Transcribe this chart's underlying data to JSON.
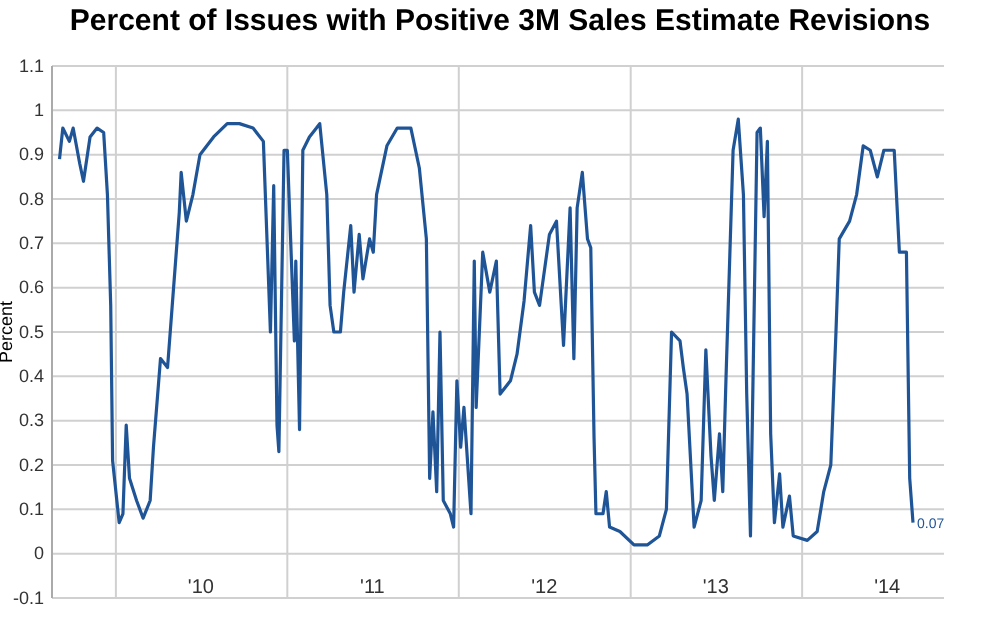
{
  "chart_data": {
    "type": "line",
    "title": "Percent of Issues with Positive 3M Sales Estimate Revisions",
    "ylabel": "Percent",
    "x": [
      "2009-09-03",
      "2009-09-10",
      "2009-09-24",
      "2009-10-02",
      "2009-10-16",
      "2009-10-24",
      "2009-11-07",
      "2009-11-22",
      "2009-12-06",
      "2009-12-14",
      "2009-12-21",
      "2009-12-25",
      "2010-01-08",
      "2010-01-16",
      "2010-01-23",
      "2010-01-30",
      "2010-02-14",
      "2010-02-28",
      "2010-03-15",
      "2010-03-22",
      "2010-04-06",
      "2010-04-21",
      "2010-05-01",
      "2010-05-16",
      "2010-05-20",
      "2010-05-31",
      "2010-06-14",
      "2010-06-29",
      "2010-07-28",
      "2010-08-26",
      "2010-09-21",
      "2010-10-20",
      "2010-11-11",
      "2010-11-26",
      "2010-12-03",
      "2010-12-10",
      "2010-12-14",
      "2010-12-25",
      "2011-01-01",
      "2011-01-08",
      "2011-01-16",
      "2011-01-19",
      "2011-01-27",
      "2011-02-03",
      "2011-02-17",
      "2011-03-04",
      "2011-03-11",
      "2011-03-26",
      "2011-04-02",
      "2011-04-10",
      "2011-04-24",
      "2011-05-01",
      "2011-05-16",
      "2011-05-23",
      "2011-06-03",
      "2011-06-11",
      "2011-06-25",
      "2011-07-03",
      "2011-07-10",
      "2011-08-01",
      "2011-08-23",
      "2011-09-21",
      "2011-10-09",
      "2011-10-24",
      "2011-10-31",
      "2011-11-07",
      "2011-11-15",
      "2011-11-22",
      "2011-11-29",
      "2011-12-14",
      "2011-12-21",
      "2011-12-28",
      "2012-01-05",
      "2012-01-12",
      "2012-01-27",
      "2012-02-03",
      "2012-02-07",
      "2012-02-21",
      "2012-03-07",
      "2012-03-21",
      "2012-03-29",
      "2012-04-20",
      "2012-05-04",
      "2012-05-19",
      "2012-06-02",
      "2012-06-10",
      "2012-06-21",
      "2012-07-12",
      "2012-07-27",
      "2012-08-11",
      "2012-08-25",
      "2012-09-02",
      "2012-09-09",
      "2012-09-20",
      "2012-10-01",
      "2012-10-08",
      "2012-10-15",
      "2012-10-19",
      "2012-11-03",
      "2012-11-10",
      "2012-11-17",
      "2012-12-09",
      "2013-01-08",
      "2013-02-06",
      "2013-03-03",
      "2013-03-18",
      "2013-03-29",
      "2013-04-16",
      "2013-04-23",
      "2013-05-01",
      "2013-05-16",
      "2013-05-31",
      "2013-06-10",
      "2013-06-21",
      "2013-06-28",
      "2013-07-09",
      "2013-07-16",
      "2013-07-23",
      "2013-08-07",
      "2013-08-18",
      "2013-08-29",
      "2013-09-05",
      "2013-09-13",
      "2013-09-27",
      "2013-10-04",
      "2013-10-12",
      "2013-10-19",
      "2013-10-26",
      "2013-11-03",
      "2013-11-14",
      "2013-11-21",
      "2013-12-05",
      "2013-12-13",
      "2014-01-12",
      "2014-02-02",
      "2014-02-16",
      "2014-03-03",
      "2014-03-14",
      "2014-03-21",
      "2014-04-12",
      "2014-04-27",
      "2014-05-11",
      "2014-05-26",
      "2014-06-10",
      "2014-06-24",
      "2014-07-16",
      "2014-07-27",
      "2014-08-11",
      "2014-08-18",
      "2014-08-25"
    ],
    "series": [
      {
        "color": "#1f5597",
        "values": [
          0.89,
          0.96,
          0.93,
          0.96,
          0.88,
          0.84,
          0.94,
          0.96,
          0.95,
          0.81,
          0.56,
          0.21,
          0.07,
          0.09,
          0.29,
          0.17,
          0.12,
          0.08,
          0.12,
          0.24,
          0.44,
          0.42,
          0.56,
          0.77,
          0.86,
          0.75,
          0.81,
          0.9,
          0.94,
          0.97,
          0.97,
          0.96,
          0.93,
          0.5,
          0.83,
          0.29,
          0.23,
          0.91,
          0.91,
          0.71,
          0.48,
          0.66,
          0.28,
          0.91,
          0.94,
          0.96,
          0.97,
          0.81,
          0.56,
          0.5,
          0.5,
          0.59,
          0.74,
          0.59,
          0.72,
          0.62,
          0.71,
          0.68,
          0.81,
          0.92,
          0.96,
          0.96,
          0.87,
          0.71,
          0.17,
          0.32,
          0.14,
          0.5,
          0.12,
          0.09,
          0.06,
          0.39,
          0.24,
          0.33,
          0.09,
          0.66,
          0.33,
          0.68,
          0.59,
          0.66,
          0.36,
          0.39,
          0.45,
          0.57,
          0.74,
          0.59,
          0.56,
          0.72,
          0.75,
          0.47,
          0.78,
          0.44,
          0.78,
          0.86,
          0.71,
          0.69,
          0.26,
          0.09,
          0.09,
          0.14,
          0.06,
          0.05,
          0.02,
          0.02,
          0.04,
          0.1,
          0.5,
          0.48,
          0.42,
          0.36,
          0.06,
          0.12,
          0.46,
          0.22,
          0.12,
          0.27,
          0.14,
          0.4,
          0.91,
          0.98,
          0.81,
          0.36,
          0.04,
          0.95,
          0.96,
          0.76,
          0.93,
          0.27,
          0.07,
          0.18,
          0.06,
          0.13,
          0.04,
          0.03,
          0.05,
          0.14,
          0.2,
          0.5,
          0.71,
          0.75,
          0.81,
          0.92,
          0.91,
          0.85,
          0.91,
          0.91,
          0.68,
          0.68,
          0.17,
          0.07
        ]
      }
    ],
    "xlim": [
      "2009-08-18",
      "2014-10-30"
    ],
    "xticks": [
      {
        "value": "2010-01-01",
        "label": null
      },
      {
        "value": "2010-07-01",
        "label": "'10"
      },
      {
        "value": "2011-01-01",
        "label": null
      },
      {
        "value": "2011-07-01",
        "label": "'11"
      },
      {
        "value": "2012-01-01",
        "label": null
      },
      {
        "value": "2012-07-01",
        "label": "'12"
      },
      {
        "value": "2013-01-01",
        "label": null
      },
      {
        "value": "2013-07-01",
        "label": "'13"
      },
      {
        "value": "2014-01-01",
        "label": null
      },
      {
        "value": "2014-07-01",
        "label": "'14"
      }
    ],
    "ylim": [
      -0.1,
      1.1
    ],
    "yticks": [
      -0.1,
      0,
      0.1,
      0.2,
      0.3,
      0.4,
      0.5,
      0.6,
      0.7,
      0.8,
      0.9,
      1,
      1.1
    ],
    "grid": true,
    "line_style": "solid",
    "marker": "none",
    "annotations": [
      {
        "text": "0.07",
        "x": "2014-08-25",
        "y": 0.07
      }
    ]
  }
}
